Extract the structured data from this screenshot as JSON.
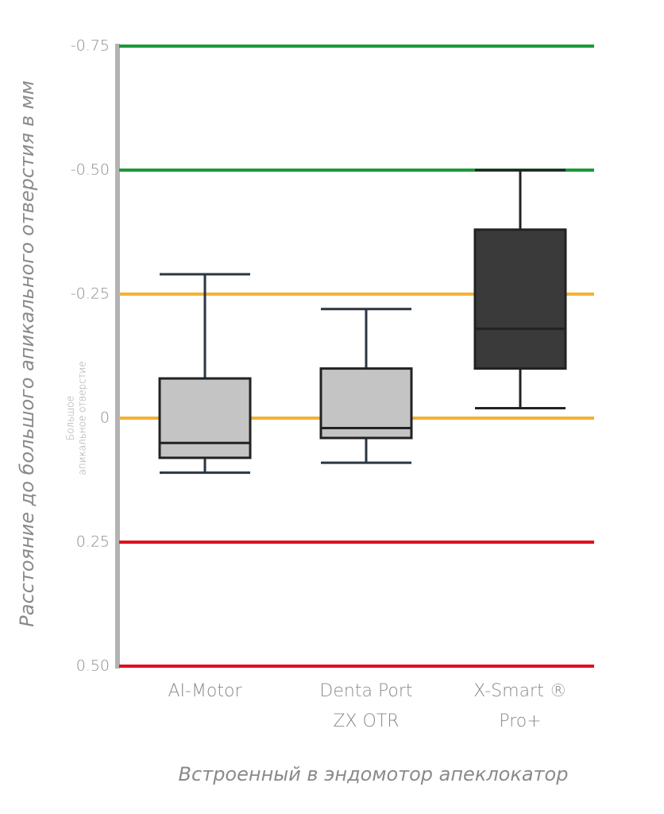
{
  "chart_data": {
    "type": "box",
    "y_label": "Расстояние до большого апикального отверстия в мм",
    "x_label": "Встроенный в эндомотор апеклокатор",
    "annotation": [
      "Большое",
      "апикальное отверстие"
    ],
    "categories": [
      [
        "AI-Motor"
      ],
      [
        "Denta Port",
        "ZX OTR"
      ],
      [
        "X-Smart ®",
        "Pro+"
      ]
    ],
    "boxes": [
      {
        "min": -0.29,
        "q1": -0.08,
        "median": 0.05,
        "q3": 0.08,
        "max": 0.11
      },
      {
        "min": -0.22,
        "q1": -0.1,
        "median": 0.02,
        "q3": 0.04,
        "max": 0.09
      },
      {
        "min": -0.5,
        "q1": -0.38,
        "median": -0.18,
        "q3": -0.1,
        "max": -0.02
      }
    ],
    "colors": [
      "#c4c4c4",
      "#c4c4c4",
      "#3a3a3a"
    ],
    "whisker_colors": [
      "#2b3642",
      "#2b3642",
      "#222222"
    ],
    "ylim": [
      -0.75,
      0.5
    ],
    "y_inverted": true,
    "yticks": [
      -0.75,
      {
        "value": -0.5,
        "label": "-0.50"
      },
      -0.25,
      0,
      0.25,
      {
        "value": 0.5,
        "label": "0.50"
      }
    ],
    "grid": true,
    "grid_colors": [
      "#1a9a3a",
      "#1a9a3a",
      "#f5b233",
      "#f5b233",
      "#e0101c",
      "#e0101c"
    ]
  }
}
